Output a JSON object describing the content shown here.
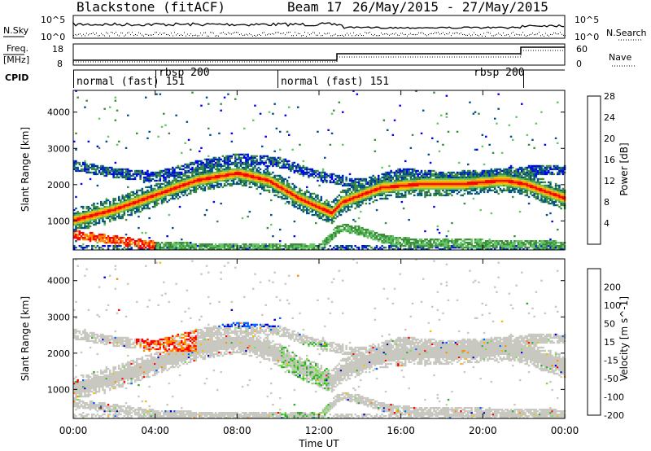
{
  "header": {
    "station": "Blackstone (fitACF)",
    "beam": "Beam 17",
    "date_range": "26/May/2015 - 27/May/2015"
  },
  "labels": {
    "nsky": "N.Sky",
    "freq": "Freq.",
    "freq_unit": "[MHz]",
    "cpid": "CPID",
    "nsearch": "N.Search",
    "nave": "Nave"
  },
  "noise_panel": {
    "left_ticks": [
      "10^5",
      "10^0"
    ],
    "right_ticks": [
      "10^5",
      "10^0"
    ]
  },
  "freq_panel": {
    "left_ticks": [
      "18",
      "8"
    ],
    "right_ticks": [
      "60",
      "0"
    ]
  },
  "cpid_segments": [
    {
      "label": "normal (fast) 151",
      "start_hour": 0.0
    },
    {
      "label": "rbsp 200",
      "start_hour": 4.0
    },
    {
      "label": "normal (fast) 151",
      "start_hour": 10.0
    },
    {
      "label": "rbsp 200",
      "start_hour": 22.0
    }
  ],
  "chart_data": [
    {
      "type": "heatmap",
      "title": "Power",
      "xlabel": "",
      "ylabel": "Slant Range [km]",
      "x_ticks": [
        "00:00",
        "04:00",
        "08:00",
        "12:00",
        "16:00",
        "20:00",
        "00:00"
      ],
      "y_ticks": [
        1000,
        2000,
        3000,
        4000
      ],
      "ylim": [
        200,
        4600
      ],
      "colorbar": {
        "label": "Power [dB]",
        "ticks": [
          4,
          8,
          12,
          16,
          20,
          24,
          28
        ],
        "colors": [
          "#0000ff",
          "#00508c",
          "#3c8c3c",
          "#64c864",
          "#f0c800",
          "#ff8c00",
          "#ff0000"
        ]
      },
      "bands": [
        {
          "name": "main",
          "points": [
            [
              0,
              1000
            ],
            [
              2,
              1300
            ],
            [
              4,
              1700
            ],
            [
              6,
              2100
            ],
            [
              8,
              2300
            ],
            [
              9.5,
              2100
            ],
            [
              11,
              1600
            ],
            [
              12.6,
              1200
            ],
            [
              13.1,
              1500
            ],
            [
              15,
              1900
            ],
            [
              17,
              2000
            ],
            [
              19,
              2000
            ],
            [
              21,
              2100
            ],
            [
              22,
              2000
            ],
            [
              23,
              1800
            ],
            [
              24,
              1600
            ]
          ]
        },
        {
          "name": "upper",
          "points": [
            [
              0,
              2500
            ],
            [
              2,
              2300
            ],
            [
              4,
              2200
            ],
            [
              6,
              2500
            ],
            [
              8,
              2700
            ],
            [
              10,
              2600
            ],
            [
              12,
              2200
            ],
            [
              14,
              2000
            ],
            [
              16,
              2300
            ],
            [
              18,
              2200
            ],
            [
              20,
              2250
            ],
            [
              22,
              2350
            ],
            [
              24,
              2400
            ]
          ]
        },
        {
          "name": "near",
          "points": [
            [
              0,
              600
            ],
            [
              2,
              450
            ],
            [
              4,
              300
            ],
            [
              6,
              250
            ],
            [
              12,
              250
            ],
            [
              13,
              800
            ],
            [
              14,
              700
            ],
            [
              15,
              500
            ],
            [
              16,
              400
            ],
            [
              24,
              300
            ]
          ]
        }
      ]
    },
    {
      "type": "heatmap",
      "title": "Velocity",
      "xlabel": "Time UT",
      "ylabel": "Slant Range [km]",
      "x_ticks": [
        "00:00",
        "04:00",
        "08:00",
        "12:00",
        "16:00",
        "20:00",
        "00:00"
      ],
      "y_ticks": [
        1000,
        2000,
        3000,
        4000
      ],
      "ylim": [
        200,
        4600
      ],
      "colorbar": {
        "label": "Velocity [m s^-1]",
        "ticks": [
          200,
          100,
          50,
          15,
          -15,
          -50,
          -100,
          -200
        ],
        "colors": [
          "#0000c8",
          "#0064ff",
          "#32aa32",
          "#78dc50",
          "#c8c8c0",
          "#f0c000",
          "#ff8c00",
          "#ff0000"
        ]
      }
    }
  ]
}
